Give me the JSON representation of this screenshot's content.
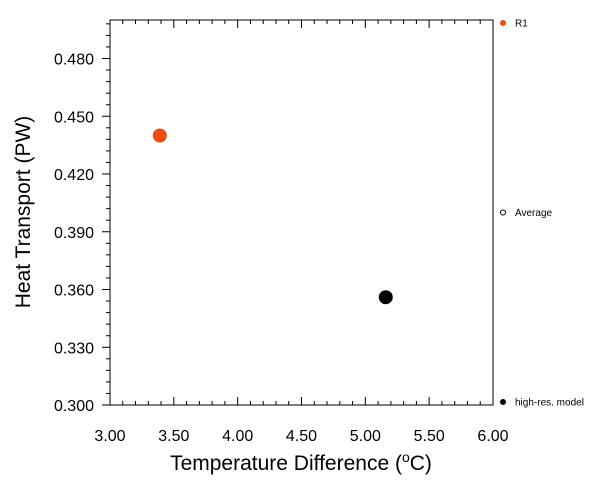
{
  "chart_data": {
    "type": "scatter",
    "xlabel": "Temperature Difference (",
    "xlabel_sup": "o",
    "xlabel_unit": "C)",
    "ylabel": "Heat Transport (PW)",
    "xlim": [
      3.0,
      6.0
    ],
    "ylim": [
      0.3,
      0.5
    ],
    "x_ticks": [
      3.0,
      3.5,
      4.0,
      4.5,
      5.0,
      5.5,
      6.0
    ],
    "x_tick_labels": [
      "3.00",
      "3.50",
      "4.00",
      "4.50",
      "5.00",
      "5.50",
      "6.00"
    ],
    "y_ticks": [
      0.3,
      0.33,
      0.36,
      0.39,
      0.42,
      0.45,
      0.48
    ],
    "y_tick_labels": [
      "0.300",
      "0.330",
      "0.360",
      "0.390",
      "0.420",
      "0.450",
      "0.480"
    ],
    "grid": false,
    "legend_position": "right-outside",
    "series": [
      {
        "name": "R1",
        "color": "#f04a10",
        "marker": "filled-circle",
        "points": [
          {
            "x": 3.39,
            "y": 0.44
          }
        ]
      },
      {
        "name": "Average",
        "color": "#000000",
        "marker": "open-circle",
        "points": []
      },
      {
        "name": "high-res. model",
        "color": "#000000",
        "marker": "filled-circle",
        "points": [
          {
            "x": 5.16,
            "y": 0.356
          }
        ]
      }
    ]
  }
}
